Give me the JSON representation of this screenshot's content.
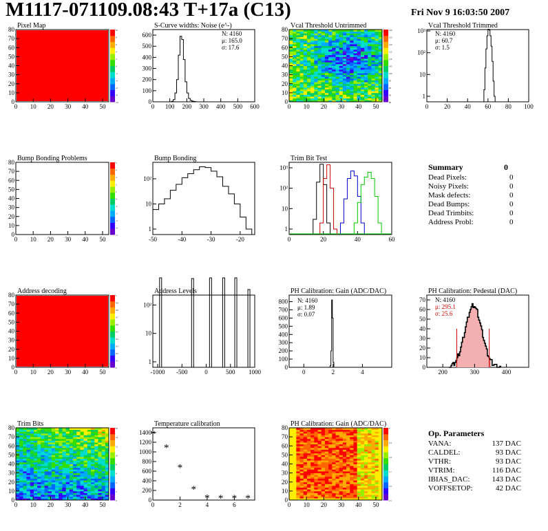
{
  "header": {
    "title": "M1117-071109.08:43 T+17a (C13)",
    "date": "Fri Nov  9 16:03:50 2007"
  },
  "colors": {
    "red": "#ff0000",
    "blue": "#0000cc",
    "green": "#00cc00",
    "hist": "#000000",
    "pedestal_fill": "#cc0000"
  },
  "chart_data": [
    {
      "id": "pixel-map",
      "type": "heatmap",
      "title": "Pixel Map",
      "xlim": [
        0,
        52
      ],
      "ylim": [
        0,
        80
      ],
      "xticks": [
        0,
        10,
        20,
        30,
        40,
        50
      ],
      "yticks": [
        0,
        10,
        20,
        30,
        40,
        50,
        60,
        70,
        80
      ],
      "fill": "uniform-red",
      "zticks": [
        -10,
        -8,
        -6,
        -4,
        -2,
        0,
        2,
        4,
        6,
        8,
        10
      ]
    },
    {
      "id": "scurve-noise",
      "type": "histogram",
      "title": "S-Curve widths: Noise (e^-)",
      "xlim": [
        0,
        600
      ],
      "xticks": [
        0,
        100,
        200,
        300,
        400,
        500,
        600
      ],
      "yticks": [
        0,
        100,
        200,
        300,
        400,
        500,
        600
      ],
      "ylim": [
        0,
        650
      ],
      "stats": {
        "N": "N: 4160",
        "mu": "μ: 165.0",
        "sigma": "σ: 17.6"
      },
      "bins_x": [
        110,
        120,
        130,
        140,
        150,
        160,
        170,
        180,
        190,
        200,
        210,
        220,
        230,
        240,
        250,
        260
      ],
      "bins_y": [
        5,
        20,
        80,
        200,
        420,
        590,
        560,
        380,
        180,
        80,
        30,
        12,
        6,
        3,
        1,
        0
      ]
    },
    {
      "id": "vcal-untrimmed",
      "type": "heatmap",
      "title": "Vcal Threshold Untrimmed",
      "xlim": [
        0,
        52
      ],
      "ylim": [
        0,
        80
      ],
      "xticks": [
        0,
        10,
        20,
        30,
        40,
        50
      ],
      "yticks": [
        0,
        10,
        20,
        30,
        40,
        50,
        60,
        70,
        80
      ],
      "zticks": [
        80,
        85,
        90,
        95,
        100,
        105,
        110,
        115,
        120,
        125,
        130
      ]
    },
    {
      "id": "vcal-trimmed",
      "type": "histogram",
      "title": "Vcal Threshold Trimmed",
      "log": true,
      "xlim": [
        0,
        100
      ],
      "xticks": [
        0,
        20,
        40,
        60,
        80,
        100
      ],
      "yticklabels": [
        "1",
        "10",
        "10²",
        "10³"
      ],
      "stats": {
        "N": "N: 4160",
        "mu": "μ: 60.7",
        "sigma": "σ:  1.5"
      },
      "bins_x": [
        56,
        57,
        58,
        59,
        60,
        61,
        62,
        63,
        64,
        65,
        66
      ],
      "bins_y": [
        2,
        20,
        150,
        600,
        1200,
        1100,
        600,
        200,
        40,
        5,
        1
      ]
    },
    {
      "id": "bump-bonding-problems",
      "type": "heatmap",
      "title": "Bump Bonding Problems",
      "xlim": [
        0,
        52
      ],
      "ylim": [
        0,
        80
      ],
      "xticks": [
        0,
        10,
        20,
        30,
        40,
        50
      ],
      "yticks": [
        0,
        10,
        20,
        30,
        40,
        50,
        60,
        70,
        80
      ],
      "fill": "empty",
      "zticks": [
        -5,
        -4,
        -3,
        -2,
        -1,
        0,
        1,
        2,
        3,
        4,
        5
      ]
    },
    {
      "id": "bump-bonding",
      "type": "histogram",
      "title": "Bump Bonding",
      "log": true,
      "xlim": [
        -50,
        -15
      ],
      "xticks": [
        -50,
        -40,
        -30,
        -20
      ],
      "yticklabels": [
        "1",
        "10",
        "10²"
      ],
      "bins_x": [
        -50,
        -48,
        -46,
        -44,
        -42,
        -40,
        -38,
        -36,
        -34,
        -32,
        -30,
        -28,
        -26,
        -24,
        -22,
        -20,
        -18
      ],
      "bins_y": [
        6,
        10,
        16,
        35,
        60,
        110,
        160,
        230,
        300,
        280,
        200,
        120,
        50,
        25,
        10,
        3,
        1
      ]
    },
    {
      "id": "trim-bit-test",
      "type": "histogram",
      "title": "Trim Bit Test",
      "log": true,
      "xlim": [
        0,
        60
      ],
      "xticks": [
        0,
        20,
        40,
        60
      ],
      "yticklabels": [
        "1",
        "10",
        "10²",
        "10³"
      ],
      "series": [
        {
          "color": "#000000",
          "x": [
            14,
            16,
            18,
            20,
            22
          ],
          "y": [
            3,
            200,
            1500,
            150,
            2
          ]
        },
        {
          "color": "#cc0000",
          "x": [
            18,
            20,
            22,
            24,
            26
          ],
          "y": [
            2,
            300,
            1400,
            100,
            1
          ]
        },
        {
          "color": "#0000cc",
          "x": [
            30,
            32,
            34,
            36,
            38,
            40,
            42
          ],
          "y": [
            2,
            30,
            300,
            700,
            400,
            40,
            2
          ]
        },
        {
          "color": "#00cc00",
          "x": [
            38,
            40,
            42,
            44,
            46,
            48,
            50,
            52
          ],
          "y": [
            2,
            20,
            150,
            350,
            600,
            300,
            40,
            2
          ]
        }
      ]
    },
    {
      "id": "address-decoding",
      "type": "heatmap",
      "title": "Address decoding",
      "xlim": [
        0,
        52
      ],
      "ylim": [
        0,
        80
      ],
      "xticks": [
        0,
        10,
        20,
        30,
        40,
        50
      ],
      "yticks": [
        0,
        10,
        20,
        30,
        40,
        50,
        60,
        70,
        80
      ],
      "fill": "uniform-red",
      "zticks": [
        0,
        0.1,
        0.2,
        0.3,
        0.4,
        0.5,
        0.6,
        0.7,
        0.8,
        0.9,
        1
      ]
    },
    {
      "id": "address-levels",
      "type": "histogram",
      "title": "Address Levels",
      "log": true,
      "xlim": [
        -1100,
        1000
      ],
      "xticks": [
        -1000,
        -500,
        0,
        500,
        1000
      ],
      "yticklabels": [
        "1",
        "10",
        "10²"
      ],
      "peaks_x": [
        -940,
        -280,
        90,
        360,
        610,
        880
      ],
      "peaks_y": [
        900,
        850,
        900,
        900,
        900,
        350
      ]
    },
    {
      "id": "ph-gain",
      "type": "histogram",
      "title": "PH Calibration: Gain (ADC/DAC)",
      "xlim": [
        -1,
        6
      ],
      "xticks": [
        0,
        2,
        4
      ],
      "yticks": [
        0,
        100,
        200,
        300,
        400,
        500,
        600,
        700,
        800
      ],
      "ylim": [
        0,
        880
      ],
      "stats": {
        "N": "N: 4160",
        "mu": "μ: 1.89",
        "sigma": "σ: 0.07"
      },
      "bins_x": [
        1.8,
        1.85,
        1.9,
        1.95,
        2.0
      ],
      "bins_y": [
        20,
        200,
        820,
        600,
        60
      ]
    },
    {
      "id": "ph-pedestal",
      "type": "histogram",
      "title": "PH Calibration: Pedestal (DAC)",
      "xlim": [
        150,
        470
      ],
      "xticks": [
        200,
        300,
        400
      ],
      "yticks": [
        0,
        10,
        20,
        30,
        40,
        50,
        60,
        70
      ],
      "ylim": [
        0,
        75
      ],
      "stats": {
        "N": "N: 4160",
        "mu": "μ: 295.1",
        "sigma": "σ: 25.6"
      },
      "cut_lines": [
        244,
        346
      ]
    },
    {
      "id": "trim-bits",
      "type": "heatmap",
      "title": "Trim Bits",
      "xlim": [
        0,
        52
      ],
      "ylim": [
        0,
        80
      ],
      "xticks": [
        0,
        10,
        20,
        30,
        40,
        50
      ],
      "yticks": [
        0,
        10,
        20,
        30,
        40,
        50,
        60,
        70,
        80
      ],
      "zticks": [
        0,
        2,
        4,
        6,
        8,
        10,
        12,
        14,
        16
      ]
    },
    {
      "id": "temperature-calibration",
      "type": "scatter",
      "title": "Temperature calibration",
      "xlim": [
        0,
        7.5
      ],
      "xticks": [
        0,
        2,
        4,
        6
      ],
      "yticks": [
        0,
        200,
        400,
        600,
        800,
        1000,
        1200,
        1400
      ],
      "ylim": [
        0,
        1500
      ],
      "x": [
        0,
        1,
        2,
        3,
        4,
        5,
        6,
        7
      ],
      "y": [
        1380,
        1090,
        680,
        230,
        50,
        40,
        40,
        40
      ]
    },
    {
      "id": "ph-gain-map",
      "type": "heatmap",
      "title": "PH Calibration: Gain (ADC/DAC)",
      "xlim": [
        0,
        52
      ],
      "ylim": [
        0,
        80
      ],
      "xticks": [
        0,
        10,
        20,
        30,
        40,
        50
      ],
      "yticks": [
        0,
        10,
        20,
        30,
        40,
        50,
        60,
        70,
        80
      ],
      "zticks": [
        1.5,
        1.6,
        1.7,
        1.8,
        1.9,
        2
      ]
    }
  ],
  "summary": {
    "heading": "Summary",
    "count": "0",
    "rows": [
      {
        "label": "Dead Pixels:",
        "value": "0"
      },
      {
        "label": "Noisy Pixels:",
        "value": "0"
      },
      {
        "label": "Mask defects:",
        "value": "0"
      },
      {
        "label": "Dead Bumps:",
        "value": "0"
      },
      {
        "label": "Dead Trimbits:",
        "value": "0"
      },
      {
        "label": "Address Probl:",
        "value": "0"
      }
    ]
  },
  "op_params": {
    "heading": "Op. Parameters",
    "rows": [
      {
        "label": "VANA:",
        "value": "137 DAC"
      },
      {
        "label": "CALDEL:",
        "value": "93 DAC"
      },
      {
        "label": "VTHR:",
        "value": "93 DAC"
      },
      {
        "label": "VTRIM:",
        "value": "116 DAC"
      },
      {
        "label": "IBIAS_DAC:",
        "value": "143 DAC"
      },
      {
        "label": "VOFFSETOP:",
        "value": "42 DAC"
      }
    ]
  }
}
